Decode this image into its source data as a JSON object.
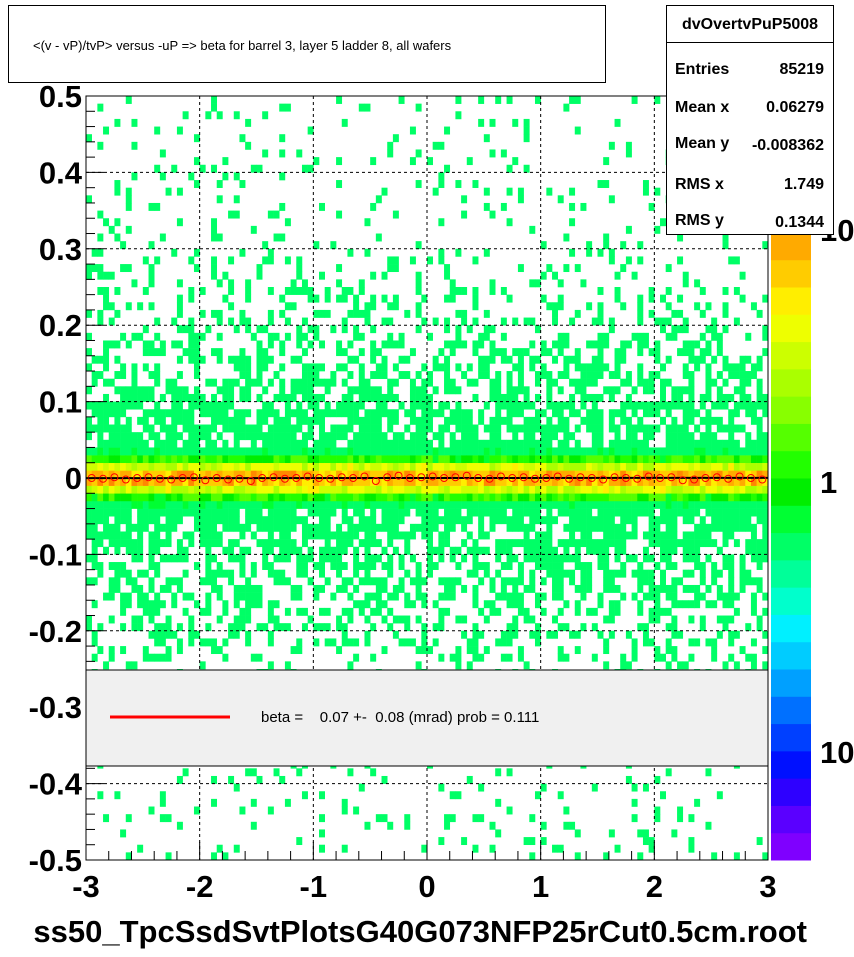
{
  "title": "<(v - vP)/tvP> versus  -uP => beta for barrel 3, layer 5 ladder 8, all wafers",
  "stats": {
    "name": "dvOvertvPuP5008",
    "rows": [
      {
        "label": "Entries",
        "value": "85219"
      },
      {
        "label": "Mean x",
        "value": "0.06279"
      },
      {
        "label": "Mean y",
        "value": "-0.008362"
      },
      {
        "label": "RMS x",
        "value": "1.749"
      },
      {
        "label": "RMS y",
        "value": "0.1344"
      }
    ]
  },
  "legend": {
    "text": "beta =    0.07 +-  0.08 (mrad) prob = 0.111",
    "line_color": "#ff0000"
  },
  "footer": "ss50_TpcSsdSvtPlotsG40G073NFP25rCut0.5cm.root",
  "colors": {
    "background": "#ffffff",
    "legend_fill": "#f0f0f0",
    "marker": "#ff0000",
    "fit_line": "#000000"
  },
  "palette": [
    "#7f00ff",
    "#5a00ff",
    "#2e00ff",
    "#0010ff",
    "#0040ff",
    "#0070ff",
    "#00a0ff",
    "#00ccff",
    "#00f0ff",
    "#00ffcc",
    "#00ff99",
    "#00ff66",
    "#00ff33",
    "#00ee00",
    "#22ff00",
    "#55ff00",
    "#88ff00",
    "#aaff00",
    "#ccff00",
    "#eeff00",
    "#ffee00",
    "#ffcc00",
    "#ffaa00",
    "#ff8800",
    "#ff6600",
    "#ff4400",
    "#ff2200",
    "#ff0000"
  ],
  "chart_data": {
    "type": "heatmap",
    "title": "<(v - vP)/tvP> versus  -uP => beta for barrel 3, layer 5 ladder 8, all wafers",
    "x_ticks": [
      "-3",
      "-2",
      "-1",
      "0",
      "1",
      "2",
      "3"
    ],
    "y_ticks": [
      "-0.5",
      "-0.4",
      "-0.3",
      "-0.2",
      "-0.1",
      "0",
      "0.1",
      "0.2",
      "0.3",
      "0.4",
      "0.5"
    ],
    "xlim": [
      -3,
      3
    ],
    "ylim": [
      -0.5,
      0.5
    ],
    "grid": true,
    "z_scale": "log",
    "z_ticks": [
      "10",
      "1",
      "10"
    ],
    "bins_x": 120,
    "bins_y": 100,
    "density_model": {
      "peak_y": 0.0,
      "core_width": 0.018,
      "tail_width": 0.13,
      "tail_fraction": 0.45
    },
    "profile": {
      "x": [
        -2.95,
        -2.85,
        -2.75,
        -2.65,
        -2.55,
        -2.45,
        -2.35,
        -2.25,
        -2.15,
        -2.05,
        -1.95,
        -1.85,
        -1.75,
        -1.65,
        -1.55,
        -1.45,
        -1.35,
        -1.25,
        -1.15,
        -1.05,
        -0.95,
        -0.85,
        -0.75,
        -0.65,
        -0.55,
        -0.45,
        -0.35,
        -0.25,
        -0.15,
        -0.05,
        0.05,
        0.15,
        0.25,
        0.35,
        0.45,
        0.55,
        0.65,
        0.75,
        0.85,
        0.95,
        1.05,
        1.15,
        1.25,
        1.35,
        1.45,
        1.55,
        1.65,
        1.75,
        1.85,
        1.95,
        2.05,
        2.15,
        2.25,
        2.35,
        2.45,
        2.55,
        2.65,
        2.75,
        2.85,
        2.95
      ],
      "y": [
        0.0,
        -0.001,
        0.001,
        -0.002,
        0.0,
        0.001,
        -0.001,
        -0.002,
        0.0,
        0.001,
        -0.003,
        0.0,
        -0.002,
        -0.001,
        -0.004,
        0.0,
        0.001,
        -0.001,
        0.0,
        0.002,
        0.0,
        -0.001,
        0.001,
        0.0,
        0.002,
        -0.004,
        0.001,
        0.003,
        0.0,
        0.001,
        0.002,
        0.0,
        0.001,
        0.003,
        0.0,
        -0.001,
        0.002,
        0.0,
        0.001,
        -0.001,
        0.0,
        0.002,
        -0.001,
        0.001,
        0.0,
        -0.002,
        0.001,
        0.0,
        -0.001,
        0.002,
        0.0,
        0.001,
        -0.003,
        -0.002,
        0.0,
        0.001,
        -0.001,
        0.002,
        0.0,
        -0.002
      ]
    },
    "fit_line": {
      "slope": 7e-05,
      "intercept": 0.0
    }
  }
}
